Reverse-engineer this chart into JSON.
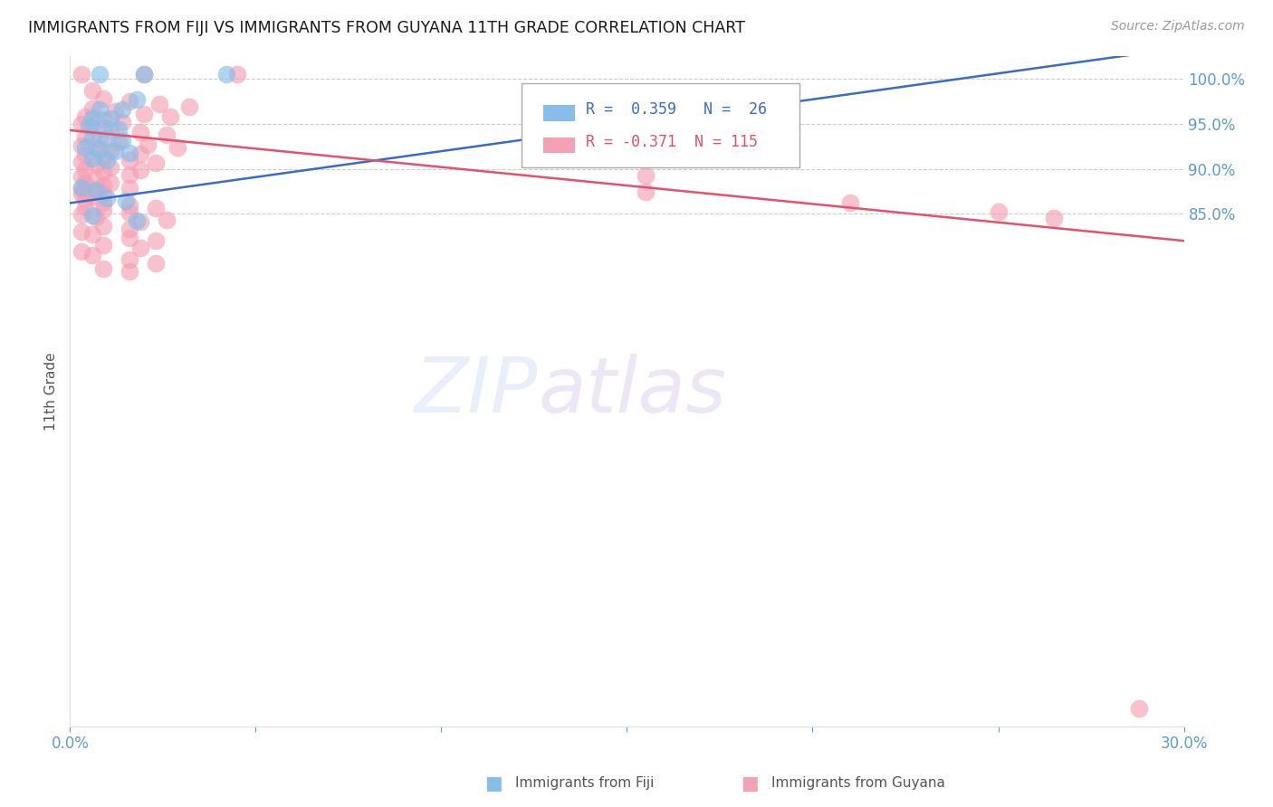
{
  "title": "IMMIGRANTS FROM FIJI VS IMMIGRANTS FROM GUYANA 11TH GRADE CORRELATION CHART",
  "source": "Source: ZipAtlas.com",
  "ylabel": "11th Grade",
  "xmin": 0.0,
  "xmax": 0.3,
  "ymin": 0.28,
  "ymax": 1.025,
  "yticks": [
    1.0,
    0.95,
    0.9,
    0.85
  ],
  "ytick_labels": [
    "100.0%",
    "95.0%",
    "90.0%",
    "85.0%"
  ],
  "xticks": [
    0.0,
    0.05,
    0.1,
    0.15,
    0.2,
    0.25,
    0.3
  ],
  "xtick_labels": [
    "0.0%",
    "",
    "",
    "",
    "",
    "",
    "30.0%"
  ],
  "fiji_color": "#87bde8",
  "guyana_color": "#f4a0b5",
  "fiji_line_color": "#3a6cc4",
  "guyana_line_color": "#e8506a",
  "fiji_R": 0.359,
  "fiji_N": 26,
  "guyana_R": -0.371,
  "guyana_N": 115,
  "watermark": "ZIPatlas",
  "title_color": "#1a1a1a",
  "axis_label_color": "#555555",
  "tick_color": "#5b9bd5",
  "grid_color": "#cccccc",
  "fiji_line_x0": 0.0,
  "fiji_line_y0": 0.862,
  "fiji_line_x1": 0.3,
  "fiji_line_y1": 1.035,
  "guyana_line_x0": 0.0,
  "guyana_line_y0": 0.943,
  "guyana_line_x1": 0.3,
  "guyana_line_y1": 0.82,
  "fiji_scatter": [
    [
      0.008,
      1.005
    ],
    [
      0.02,
      1.005
    ],
    [
      0.042,
      1.005
    ],
    [
      0.018,
      0.977
    ],
    [
      0.008,
      0.966
    ],
    [
      0.014,
      0.966
    ],
    [
      0.006,
      0.956
    ],
    [
      0.011,
      0.956
    ],
    [
      0.005,
      0.948
    ],
    [
      0.009,
      0.946
    ],
    [
      0.013,
      0.944
    ],
    [
      0.006,
      0.936
    ],
    [
      0.01,
      0.934
    ],
    [
      0.014,
      0.932
    ],
    [
      0.004,
      0.924
    ],
    [
      0.008,
      0.922
    ],
    [
      0.012,
      0.92
    ],
    [
      0.016,
      0.918
    ],
    [
      0.006,
      0.912
    ],
    [
      0.01,
      0.91
    ],
    [
      0.003,
      0.88
    ],
    [
      0.007,
      0.877
    ],
    [
      0.01,
      0.867
    ],
    [
      0.015,
      0.864
    ],
    [
      0.006,
      0.848
    ],
    [
      0.018,
      0.842
    ]
  ],
  "guyana_scatter": [
    [
      0.003,
      1.005
    ],
    [
      0.02,
      1.005
    ],
    [
      0.045,
      1.005
    ],
    [
      0.006,
      0.987
    ],
    [
      0.009,
      0.978
    ],
    [
      0.016,
      0.975
    ],
    [
      0.024,
      0.972
    ],
    [
      0.032,
      0.969
    ],
    [
      0.006,
      0.967
    ],
    [
      0.012,
      0.964
    ],
    [
      0.02,
      0.961
    ],
    [
      0.027,
      0.958
    ],
    [
      0.004,
      0.958
    ],
    [
      0.009,
      0.955
    ],
    [
      0.014,
      0.952
    ],
    [
      0.003,
      0.95
    ],
    [
      0.006,
      0.947
    ],
    [
      0.011,
      0.944
    ],
    [
      0.019,
      0.941
    ],
    [
      0.026,
      0.938
    ],
    [
      0.004,
      0.936
    ],
    [
      0.008,
      0.933
    ],
    [
      0.013,
      0.93
    ],
    [
      0.021,
      0.927
    ],
    [
      0.029,
      0.924
    ],
    [
      0.003,
      0.926
    ],
    [
      0.007,
      0.923
    ],
    [
      0.011,
      0.92
    ],
    [
      0.019,
      0.917
    ],
    [
      0.004,
      0.916
    ],
    [
      0.009,
      0.913
    ],
    [
      0.016,
      0.91
    ],
    [
      0.023,
      0.907
    ],
    [
      0.003,
      0.908
    ],
    [
      0.007,
      0.905
    ],
    [
      0.011,
      0.902
    ],
    [
      0.019,
      0.899
    ],
    [
      0.004,
      0.9
    ],
    [
      0.009,
      0.897
    ],
    [
      0.016,
      0.894
    ],
    [
      0.003,
      0.892
    ],
    [
      0.007,
      0.889
    ],
    [
      0.011,
      0.885
    ],
    [
      0.004,
      0.885
    ],
    [
      0.009,
      0.882
    ],
    [
      0.016,
      0.879
    ],
    [
      0.003,
      0.878
    ],
    [
      0.007,
      0.875
    ],
    [
      0.004,
      0.875
    ],
    [
      0.009,
      0.872
    ],
    [
      0.003,
      0.872
    ],
    [
      0.006,
      0.869
    ],
    [
      0.004,
      0.866
    ],
    [
      0.009,
      0.862
    ],
    [
      0.016,
      0.859
    ],
    [
      0.023,
      0.856
    ],
    [
      0.004,
      0.857
    ],
    [
      0.009,
      0.854
    ],
    [
      0.016,
      0.851
    ],
    [
      0.003,
      0.849
    ],
    [
      0.007,
      0.846
    ],
    [
      0.026,
      0.843
    ],
    [
      0.019,
      0.841
    ],
    [
      0.009,
      0.836
    ],
    [
      0.016,
      0.833
    ],
    [
      0.003,
      0.83
    ],
    [
      0.006,
      0.827
    ],
    [
      0.016,
      0.823
    ],
    [
      0.023,
      0.82
    ],
    [
      0.009,
      0.815
    ],
    [
      0.019,
      0.812
    ],
    [
      0.003,
      0.808
    ],
    [
      0.006,
      0.804
    ],
    [
      0.016,
      0.799
    ],
    [
      0.023,
      0.795
    ],
    [
      0.009,
      0.789
    ],
    [
      0.016,
      0.786
    ],
    [
      0.155,
      0.893
    ],
    [
      0.155,
      0.875
    ],
    [
      0.21,
      0.862
    ],
    [
      0.25,
      0.852
    ],
    [
      0.265,
      0.845
    ],
    [
      0.288,
      0.3
    ]
  ]
}
